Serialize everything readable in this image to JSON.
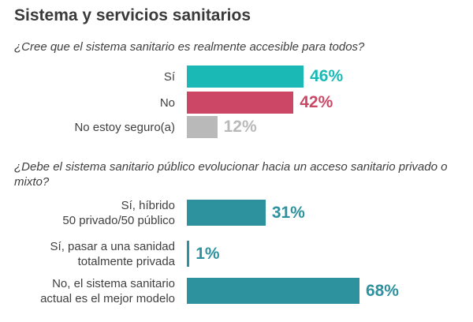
{
  "title": "Sistema y servicios sanitarios",
  "chart_data": [
    {
      "type": "bar",
      "orientation": "horizontal",
      "title": "¿Cree que el sistema sanitario es realmente accesible para todos?",
      "categories": [
        "Sí",
        "No",
        "No estoy seguro(a)"
      ],
      "values": [
        46,
        42,
        12
      ],
      "value_labels": [
        "46%",
        "42%",
        "12%"
      ],
      "unit": "%",
      "colors": [
        "#1ab9b5",
        "#cc4765",
        "#b9b9b9"
      ]
    },
    {
      "type": "bar",
      "orientation": "horizontal",
      "title": "¿Debe el sistema sanitario público evolucionar hacia un acceso sanitario privado o mixto?",
      "categories": [
        [
          "Sí, híbrido",
          "50 privado/50 público"
        ],
        [
          "Sí, pasar a una sanidad",
          "totalmente privada"
        ],
        [
          "No, el sistema sanitario",
          "actual es el mejor modelo"
        ]
      ],
      "values": [
        31,
        1,
        68
      ],
      "value_labels": [
        "31%",
        "1%",
        "68%"
      ],
      "unit": "%",
      "colors": [
        "#2e919e",
        "#2e919e",
        "#2e919e"
      ]
    }
  ]
}
